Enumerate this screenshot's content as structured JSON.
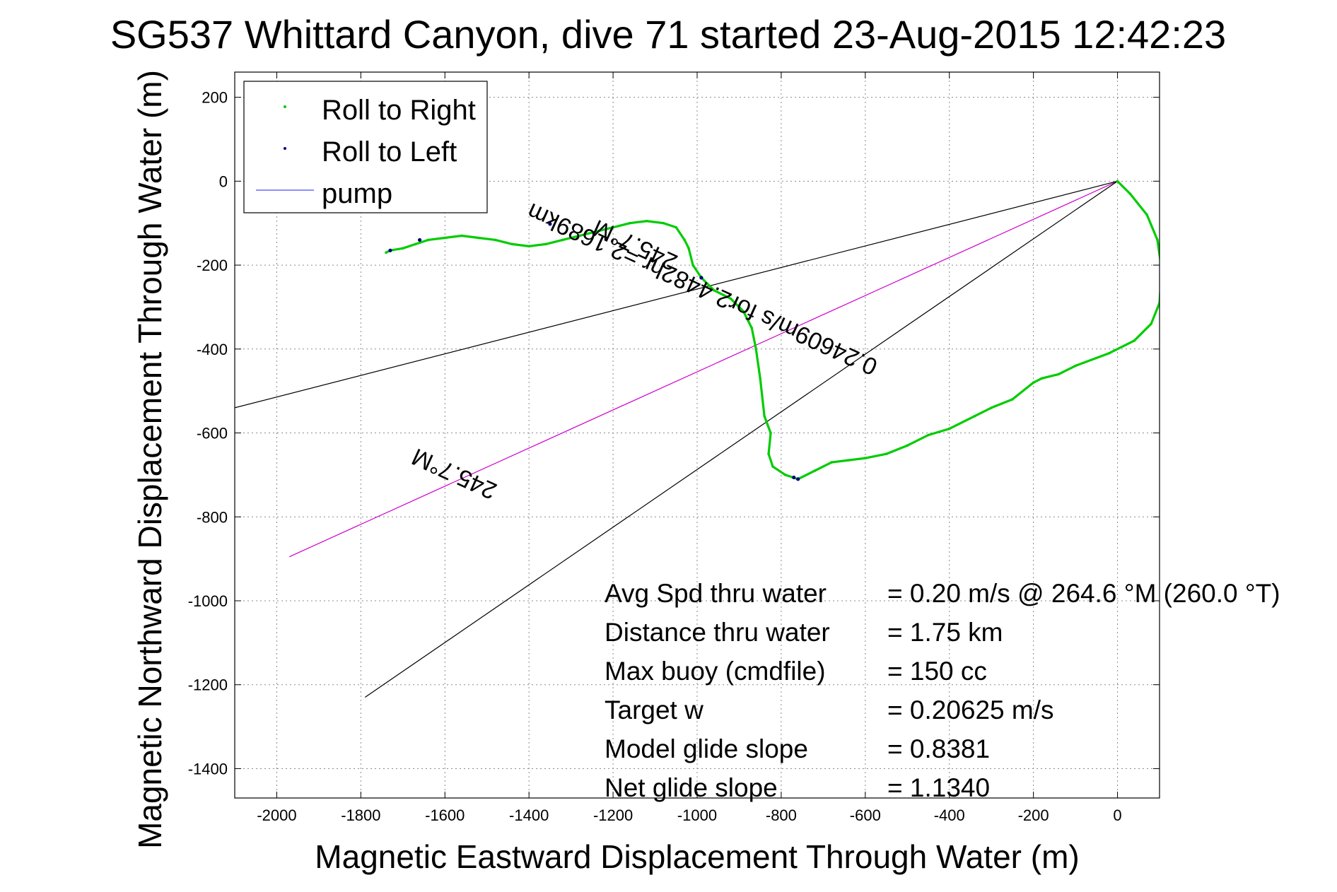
{
  "chart_data": {
    "type": "line",
    "title": "SG537 Whittard Canyon, dive 71 started 23-Aug-2015 12:42:23",
    "xlabel": "Magnetic Eastward Displacement Through Water (m)",
    "ylabel": "Magnetic Northward Displacement Through Water (m)",
    "xlim": [
      -2100,
      100
    ],
    "ylim": [
      -1470,
      260
    ],
    "xticks": [
      -2000,
      -1800,
      -1600,
      -1400,
      -1200,
      -1000,
      -800,
      -600,
      -400,
      -200,
      0
    ],
    "yticks": [
      200,
      0,
      -200,
      -400,
      -600,
      -800,
      -1000,
      -1200,
      -1400
    ],
    "grid": true,
    "legend": {
      "position": "top-left",
      "entries": [
        {
          "label": "Roll to Right",
          "color": "#00cc00",
          "marker": "dot"
        },
        {
          "label": "Roll to Left",
          "color": "#000080",
          "marker": "dot"
        },
        {
          "label": "pump",
          "color": "#6a6aff",
          "marker": "line"
        }
      ]
    },
    "series": [
      {
        "name": "track",
        "color": "#00cc00",
        "x": [
          0,
          30,
          70,
          95,
          105,
          100,
          80,
          40,
          -20,
          -100,
          -140,
          -180,
          -200,
          -250,
          -300,
          -340,
          -400,
          -450,
          -500,
          -550,
          -600,
          -640,
          -680,
          -720,
          -760,
          -790,
          -820,
          -830,
          -825,
          -840,
          -850,
          -860,
          -870,
          -890,
          -920,
          -960,
          -990,
          -1010,
          -1020,
          -1030,
          -1050,
          -1080,
          -1120,
          -1160,
          -1200,
          -1240,
          -1280,
          -1320,
          -1360,
          -1400,
          -1440,
          -1480,
          -1520,
          -1560,
          -1600,
          -1640,
          -1670,
          -1700,
          -1730,
          -1740
        ],
        "y": [
          0,
          -30,
          -80,
          -140,
          -210,
          -290,
          -340,
          -380,
          -410,
          -440,
          -460,
          -470,
          -480,
          -520,
          -540,
          -560,
          -590,
          -605,
          -630,
          -650,
          -660,
          -665,
          -670,
          -690,
          -710,
          -700,
          -680,
          -650,
          -600,
          -560,
          -470,
          -400,
          -350,
          -310,
          -280,
          -260,
          -230,
          -200,
          -160,
          -140,
          -110,
          -100,
          -95,
          -100,
          -110,
          -120,
          -130,
          -140,
          -150,
          -155,
          -150,
          -140,
          -135,
          -130,
          -135,
          -140,
          -150,
          -160,
          -165,
          -170
        ]
      },
      {
        "name": "Roll to Left",
        "color": "#000080",
        "x": [
          -760,
          -1730,
          -1660,
          -1350,
          -990,
          -770
        ],
        "y": [
          -710,
          -165,
          -140,
          -102,
          -230,
          -706
        ]
      }
    ],
    "reference_lines": [
      {
        "name": "heading-line",
        "color": "#cc00cc",
        "x": [
          0,
          -1970
        ],
        "y": [
          0,
          -895
        ]
      },
      {
        "name": "envelope-upper",
        "color": "#000000",
        "x": [
          0,
          -2100
        ],
        "y": [
          0,
          -540
        ]
      },
      {
        "name": "envelope-lower",
        "color": "#000000",
        "x": [
          0,
          -1790
        ],
        "y": [
          0,
          -1230
        ]
      }
    ],
    "annotations": [
      {
        "name": "heading-top",
        "text": "245.7°M",
        "x": -1140,
        "y": -135,
        "angle": 204.5
      },
      {
        "name": "speed-label",
        "text": "0.24609m/s for2.4482hr =2.1689km",
        "x": -980,
        "y": -240,
        "angle": 204.5
      },
      {
        "name": "heading-bottom",
        "text": "245.7°M",
        "x": -1570,
        "y": -680,
        "angle": 204.5
      }
    ],
    "stats": [
      {
        "label": "Avg Spd thru water",
        "value": "=  0.20 m/s @ 264.6 °M (260.0 °T)"
      },
      {
        "label": "Distance thru water",
        "value": "=  1.75 km"
      },
      {
        "label": "Max buoy (cmdfile)",
        "value": "= 150 cc"
      },
      {
        "label": "Target w",
        "value": "= 0.20625 m/s"
      },
      {
        "label": "Model glide slope",
        "value": "= 0.8381"
      },
      {
        "label": "Net glide slope",
        "value": "= 1.1340"
      }
    ]
  }
}
